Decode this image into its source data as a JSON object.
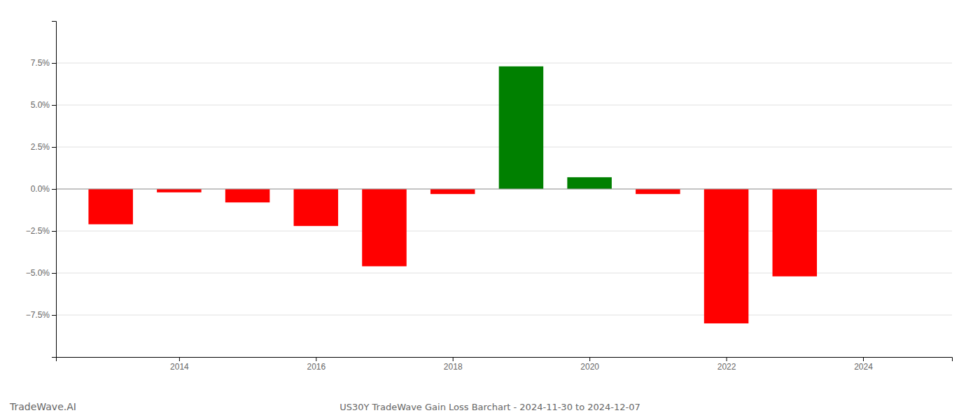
{
  "chart_data": {
    "type": "bar",
    "title": "US30Y TradeWave Gain Loss Barchart - 2024-11-30 to 2024-12-07",
    "annotations": [
      "TradeWave.AI"
    ],
    "x": [
      2013,
      2014,
      2015,
      2016,
      2017,
      2018,
      2019,
      2020,
      2021,
      2022,
      2023
    ],
    "values": [
      -2.1,
      -0.2,
      -0.8,
      -2.2,
      -4.6,
      -0.3,
      7.3,
      0.7,
      -0.3,
      -8.0,
      -5.2
    ],
    "colors": [
      "#ff0000",
      "#ff0000",
      "#ff0000",
      "#ff0000",
      "#ff0000",
      "#ff0000",
      "#008000",
      "#008000",
      "#ff0000",
      "#ff0000",
      "#ff0000"
    ],
    "xlim": [
      2012.2,
      2025.3
    ],
    "xticks": [
      2014,
      2016,
      2018,
      2020,
      2022,
      2024
    ],
    "ylim": [
      -10.0,
      10.0
    ],
    "yticks": [
      {
        "value": -7.5,
        "label": "−7.5%"
      },
      {
        "value": -5.0,
        "label": "−5.0%"
      },
      {
        "value": -2.5,
        "label": "−2.5%"
      },
      {
        "value": 0.0,
        "label": "0.0%"
      },
      {
        "value": 2.5,
        "label": "2.5%"
      },
      {
        "value": 5.0,
        "label": "5.0%"
      },
      {
        "value": 7.5,
        "label": "7.5%"
      }
    ],
    "grid": true
  }
}
